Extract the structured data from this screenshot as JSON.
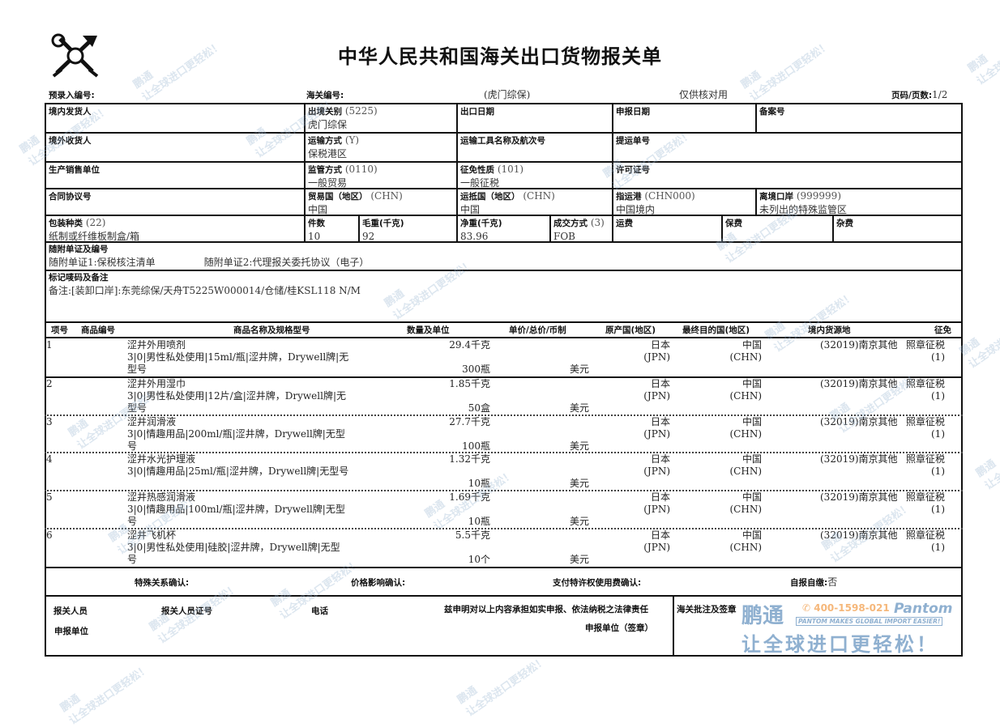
{
  "title": "中华人民共和国海关出口货物报关单",
  "header": {
    "pre_entry_label": "预录入编号:",
    "customs_no_label": "海关编号:",
    "customs_office": "(虎门综保)",
    "verify_note": "仅供核对用",
    "page_label": "页码/页数:",
    "page_value": "1/2"
  },
  "fields": {
    "consignor": {
      "label": "境内发货人",
      "value": ""
    },
    "exit_customs": {
      "label": "出境关别",
      "code": "(5225)",
      "value": "虎门综保"
    },
    "export_date": {
      "label": "出口日期",
      "value": ""
    },
    "declare_date": {
      "label": "申报日期",
      "value": ""
    },
    "record_no": {
      "label": "备案号",
      "value": ""
    },
    "consignee": {
      "label": "境外收货人",
      "value": ""
    },
    "transport_mode": {
      "label": "运输方式",
      "code": "(Y)",
      "value": "保税港区"
    },
    "vessel": {
      "label": "运输工具名称及航次号",
      "value": ""
    },
    "bill_no": {
      "label": "提运单号",
      "value": ""
    },
    "producer": {
      "label": "生产销售单位",
      "value": ""
    },
    "supervision": {
      "label": "监管方式",
      "code": "(0110)",
      "value": "一般贸易"
    },
    "levy_nature": {
      "label": "征免性质",
      "code": "(101)",
      "value": "一般征税"
    },
    "license": {
      "label": "许可证号",
      "value": ""
    },
    "contract": {
      "label": "合同协议号",
      "value": ""
    },
    "trade_country": {
      "label": "贸易国（地区）",
      "code": "(CHN)",
      "value": "中国"
    },
    "dest_country": {
      "label": "运抵国（地区）",
      "code": "(CHN)",
      "value": "中国"
    },
    "dest_port": {
      "label": "指运港",
      "code": "(CHN000)",
      "value": "中国境内"
    },
    "exit_port": {
      "label": "离境口岸",
      "code": "(999999)",
      "value": "未列出的特殊监管区"
    },
    "package_type": {
      "label": "包装种类",
      "code": "(22)",
      "value": "纸制或纤维板制盒/箱"
    },
    "pieces": {
      "label": "件数",
      "value": "10"
    },
    "gross_weight": {
      "label": "毛重(千克)",
      "value": "92"
    },
    "net_weight": {
      "label": "净重(千克)",
      "value": "83.96"
    },
    "deal_mode": {
      "label": "成交方式",
      "code": "(3)",
      "value": "FOB"
    },
    "freight": {
      "label": "运费",
      "value": ""
    },
    "insurance": {
      "label": "保费",
      "value": ""
    },
    "misc": {
      "label": "杂费",
      "value": ""
    },
    "attached_docs": {
      "label": "随附单证及编号",
      "doc1": "随附单证1:保税核注清单",
      "doc2": "随附单证2:代理报关委托协议（电子）"
    },
    "marks": {
      "label": "标记唛码及备注",
      "value": "备注:[装卸口岸]:东莞综保/天舟T5225W000014/仓储/桂KSL118 N/M"
    }
  },
  "items_header": [
    "项号",
    "商品编号",
    "商品名称及规格型号",
    "数量及单位",
    "单价/总价/币制",
    "原产国(地区)",
    "最终目的国(地区)",
    "境内货源地",
    "征免"
  ],
  "items": [
    {
      "no": "1",
      "code": "",
      "name": "涩井外用喷剂",
      "spec1": "3|0|男性私处使用|15ml/瓶|涩井牌，Drywell牌|无",
      "spec2": "型号",
      "qty1": "29.4千克",
      "qty2": "300瓶",
      "currency": "美元",
      "origin": "日本",
      "origin_code": "(JPN)",
      "dest": "中国",
      "dest_code": "(CHN)",
      "source": "(32019)南京其他",
      "levy": "照章征税",
      "levy_code": "(1)"
    },
    {
      "no": "2",
      "code": "",
      "name": "涩井外用湿巾",
      "spec1": "3|0|男性私处使用|12片/盒|涩井牌，Drywell牌|无",
      "spec2": "型号",
      "qty1": "1.85千克",
      "qty2": "50盒",
      "currency": "美元",
      "origin": "日本",
      "origin_code": "(JPN)",
      "dest": "中国",
      "dest_code": "(CHN)",
      "source": "(32019)南京其他",
      "levy": "照章征税",
      "levy_code": "(1)"
    },
    {
      "no": "3",
      "code": "",
      "name": "涩井润滑液",
      "spec1": "3|0|情趣用品|200ml/瓶|涩井牌，Drywell牌|无型",
      "spec2": "号",
      "qty1": "27.7千克",
      "qty2": "100瓶",
      "currency": "美元",
      "origin": "日本",
      "origin_code": "(JPN)",
      "dest": "中国",
      "dest_code": "(CHN)",
      "source": "(32019)南京其他",
      "levy": "照章征税",
      "levy_code": "(1)"
    },
    {
      "no": "4",
      "code": "",
      "name": "涩井水光护理液",
      "spec1": "3|0|情趣用品|25ml/瓶|涩井牌，Drywell牌|无型号",
      "spec2": "",
      "qty1": "1.32千克",
      "qty2": "10瓶",
      "currency": "美元",
      "origin": "日本",
      "origin_code": "(JPN)",
      "dest": "中国",
      "dest_code": "(CHN)",
      "source": "(32019)南京其他",
      "levy": "照章征税",
      "levy_code": "(1)"
    },
    {
      "no": "5",
      "code": "",
      "name": "涩井热感润滑液",
      "spec1": "3|0|情趣用品|100ml/瓶|涩井牌，Drywell牌|无型",
      "spec2": "号",
      "qty1": "1.69千克",
      "qty2": "10瓶",
      "currency": "美元",
      "origin": "日本",
      "origin_code": "(JPN)",
      "dest": "中国",
      "dest_code": "(CHN)",
      "source": "(32019)南京其他",
      "levy": "照章征税",
      "levy_code": "(1)"
    },
    {
      "no": "6",
      "code": "",
      "name": "涩井飞机杯",
      "spec1": "3|0|男性私处使用|硅胶|涩井牌，Drywell牌|无型",
      "spec2": "号",
      "qty1": "5.5千克",
      "qty2": "10个",
      "currency": "美元",
      "origin": "日本",
      "origin_code": "(JPN)",
      "dest": "中国",
      "dest_code": "(CHN)",
      "source": "(32019)南京其他",
      "levy": "照章征税",
      "levy_code": "(1)"
    }
  ],
  "confirm": {
    "special_relation": "特殊关系确认:",
    "price_impact": "价格影响确认:",
    "royalty": "支付特许权使用费确认:",
    "self_report_label": "自报自缴:",
    "self_report_value": "否"
  },
  "footer": {
    "declarant": "报关人员",
    "declarant_no": "报关人员证号",
    "phone": "电话",
    "statement": "兹申明对以上内容承担如实申报、依法纳税之法律责任",
    "declare_unit": "申报单位",
    "declare_seal": "申报单位（签章）",
    "customs_seal": "海关批注及签章"
  },
  "watermark": {
    "brand_cn": "鹏通",
    "phone": "400-1598-021",
    "brand_en": "Pantom",
    "slogan_en": "PANTOM MAKES GLOBAL IMPORT EASIER!",
    "slogan_cn": "让全球进口更轻松！",
    "color": "#9db8d3",
    "accent": "#f5b77a"
  }
}
